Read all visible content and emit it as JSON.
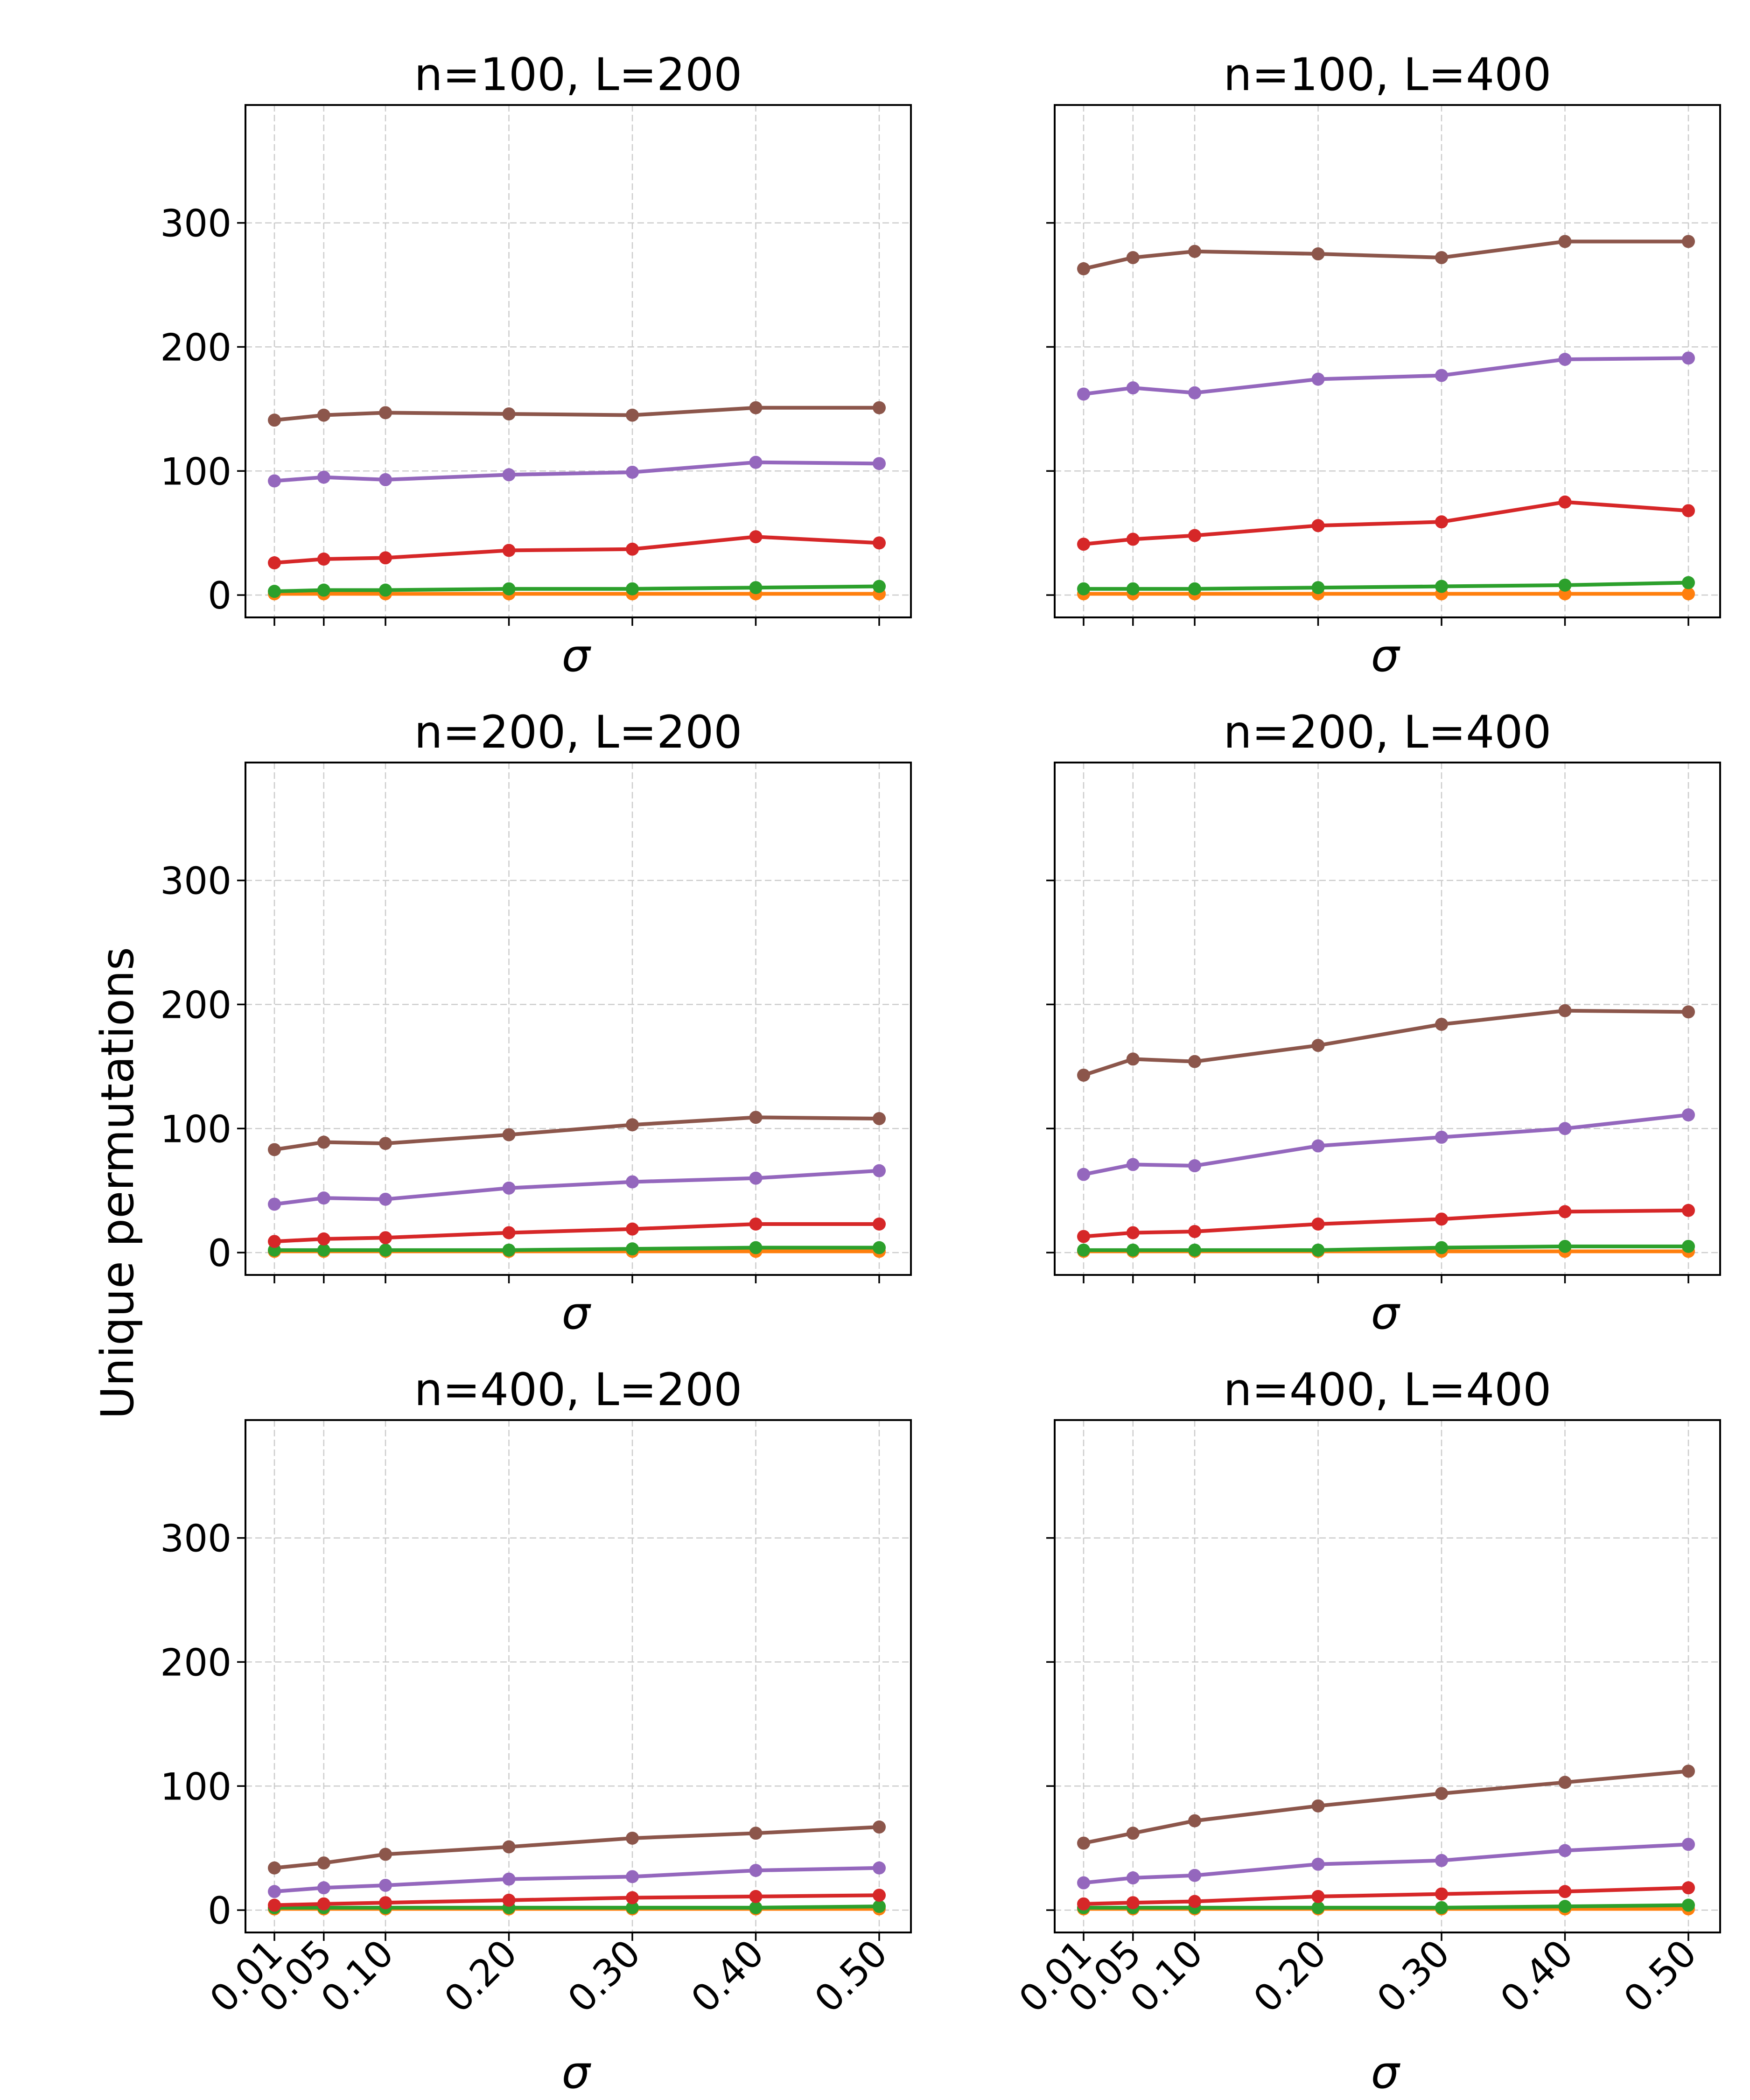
{
  "chart_data": {
    "type": "line",
    "layout": "3x2 grid of subplots",
    "ylabel": "Unique permutations",
    "xlabel": "σ",
    "x": [
      0.01,
      0.05,
      0.1,
      0.2,
      0.3,
      0.4,
      0.5
    ],
    "x_tick_labels": [
      "0.01",
      "0.05",
      "0.10",
      "0.20",
      "0.30",
      "0.40",
      "0.50"
    ],
    "ylim": [
      -18,
      395
    ],
    "y_ticks": [
      0,
      100,
      200,
      300
    ],
    "grid": true,
    "series_colors": {
      "orange": "#ff7f0e",
      "green": "#2ca02c",
      "red": "#d62728",
      "purple": "#9467bd",
      "brown": "#8c564b"
    },
    "subplots": [
      {
        "title": "n=100, L=200",
        "series": [
          {
            "name": "orange",
            "values": [
              1,
              1,
              1,
              1,
              1,
              1,
              1
            ]
          },
          {
            "name": "green",
            "values": [
              3,
              4,
              4,
              5,
              5,
              6,
              7
            ]
          },
          {
            "name": "red",
            "values": [
              26,
              29,
              30,
              36,
              37,
              47,
              42
            ]
          },
          {
            "name": "purple",
            "values": [
              92,
              95,
              93,
              97,
              99,
              107,
              106
            ]
          },
          {
            "name": "brown",
            "values": [
              141,
              145,
              147,
              146,
              145,
              151,
              151
            ]
          }
        ]
      },
      {
        "title": "n=100, L=400",
        "series": [
          {
            "name": "orange",
            "values": [
              1,
              1,
              1,
              1,
              1,
              1,
              1
            ]
          },
          {
            "name": "green",
            "values": [
              5,
              5,
              5,
              6,
              7,
              8,
              10
            ]
          },
          {
            "name": "red",
            "values": [
              41,
              45,
              48,
              56,
              59,
              75,
              68
            ]
          },
          {
            "name": "purple",
            "values": [
              162,
              167,
              163,
              174,
              177,
              190,
              191
            ]
          },
          {
            "name": "brown",
            "values": [
              263,
              272,
              277,
              275,
              272,
              285,
              285
            ]
          }
        ]
      },
      {
        "title": "n=200, L=200",
        "series": [
          {
            "name": "orange",
            "values": [
              1,
              1,
              1,
              1,
              1,
              1,
              1
            ]
          },
          {
            "name": "green",
            "values": [
              2,
              2,
              2,
              2,
              3,
              4,
              4
            ]
          },
          {
            "name": "red",
            "values": [
              9,
              11,
              12,
              16,
              19,
              23,
              23
            ]
          },
          {
            "name": "purple",
            "values": [
              39,
              44,
              43,
              52,
              57,
              60,
              66
            ]
          },
          {
            "name": "brown",
            "values": [
              83,
              89,
              88,
              95,
              103,
              109,
              108
            ]
          }
        ]
      },
      {
        "title": "n=200, L=400",
        "series": [
          {
            "name": "orange",
            "values": [
              1,
              1,
              1,
              1,
              1,
              1,
              1
            ]
          },
          {
            "name": "green",
            "values": [
              2,
              2,
              2,
              2,
              4,
              5,
              5
            ]
          },
          {
            "name": "red",
            "values": [
              13,
              16,
              17,
              23,
              27,
              33,
              34
            ]
          },
          {
            "name": "purple",
            "values": [
              63,
              71,
              70,
              86,
              93,
              100,
              111
            ]
          },
          {
            "name": "brown",
            "values": [
              143,
              156,
              154,
              167,
              184,
              195,
              194
            ]
          }
        ]
      },
      {
        "title": "n=400, L=200",
        "series": [
          {
            "name": "orange",
            "values": [
              1,
              1,
              1,
              1,
              1,
              1,
              1
            ]
          },
          {
            "name": "green",
            "values": [
              2,
              2,
              2,
              2,
              2,
              2,
              3
            ]
          },
          {
            "name": "red",
            "values": [
              4,
              5,
              6,
              8,
              10,
              11,
              12
            ]
          },
          {
            "name": "purple",
            "values": [
              15,
              18,
              20,
              25,
              27,
              32,
              34
            ]
          },
          {
            "name": "brown",
            "values": [
              34,
              38,
              45,
              51,
              58,
              62,
              67
            ]
          }
        ]
      },
      {
        "title": "n=400, L=400",
        "series": [
          {
            "name": "orange",
            "values": [
              1,
              1,
              1,
              1,
              1,
              1,
              1
            ]
          },
          {
            "name": "green",
            "values": [
              2,
              2,
              2,
              2,
              2,
              3,
              4
            ]
          },
          {
            "name": "red",
            "values": [
              5,
              6,
              7,
              11,
              13,
              15,
              18
            ]
          },
          {
            "name": "purple",
            "values": [
              22,
              26,
              28,
              37,
              40,
              48,
              53
            ]
          },
          {
            "name": "brown",
            "values": [
              54,
              62,
              72,
              84,
              94,
              103,
              112
            ]
          }
        ]
      }
    ]
  }
}
